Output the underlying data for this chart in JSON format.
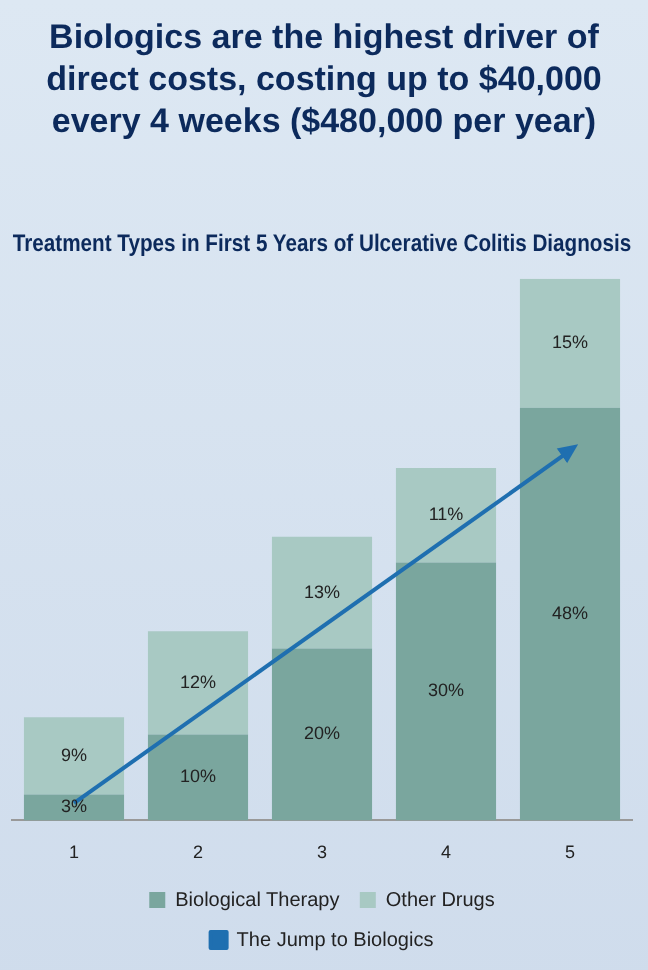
{
  "chart_data": {
    "type": "bar",
    "title": "Treatment Types in First 5 Years of Ulcerative Colitis Diagnosis",
    "subtitle": "Biologics are the highest driver of direct costs, costing up to $40,000 every 4 weeks ($480,000 per year)",
    "categories": [
      "1",
      "2",
      "3",
      "4",
      "5"
    ],
    "stacked": true,
    "ylim": [
      0,
      63
    ],
    "tick_labels": "x",
    "grid": false,
    "legend": "bottom",
    "series": [
      {
        "name": "Biological Therapy",
        "color": "#7aa69e",
        "values": [
          3,
          10,
          20,
          30,
          48
        ],
        "value_labels": [
          "3%",
          "10%",
          "20%",
          "30%",
          "48%"
        ]
      },
      {
        "name": "Other Drugs",
        "color": "#a8c9c3",
        "values": [
          9,
          12,
          13,
          11,
          15
        ],
        "value_labels": [
          "9%",
          "12%",
          "13%",
          "11%",
          "15%"
        ]
      },
      {
        "name": "The Jump to Biologics",
        "type": "line",
        "color": "#1f6fb0",
        "values": [
          2,
          null,
          null,
          null,
          43
        ]
      }
    ]
  }
}
